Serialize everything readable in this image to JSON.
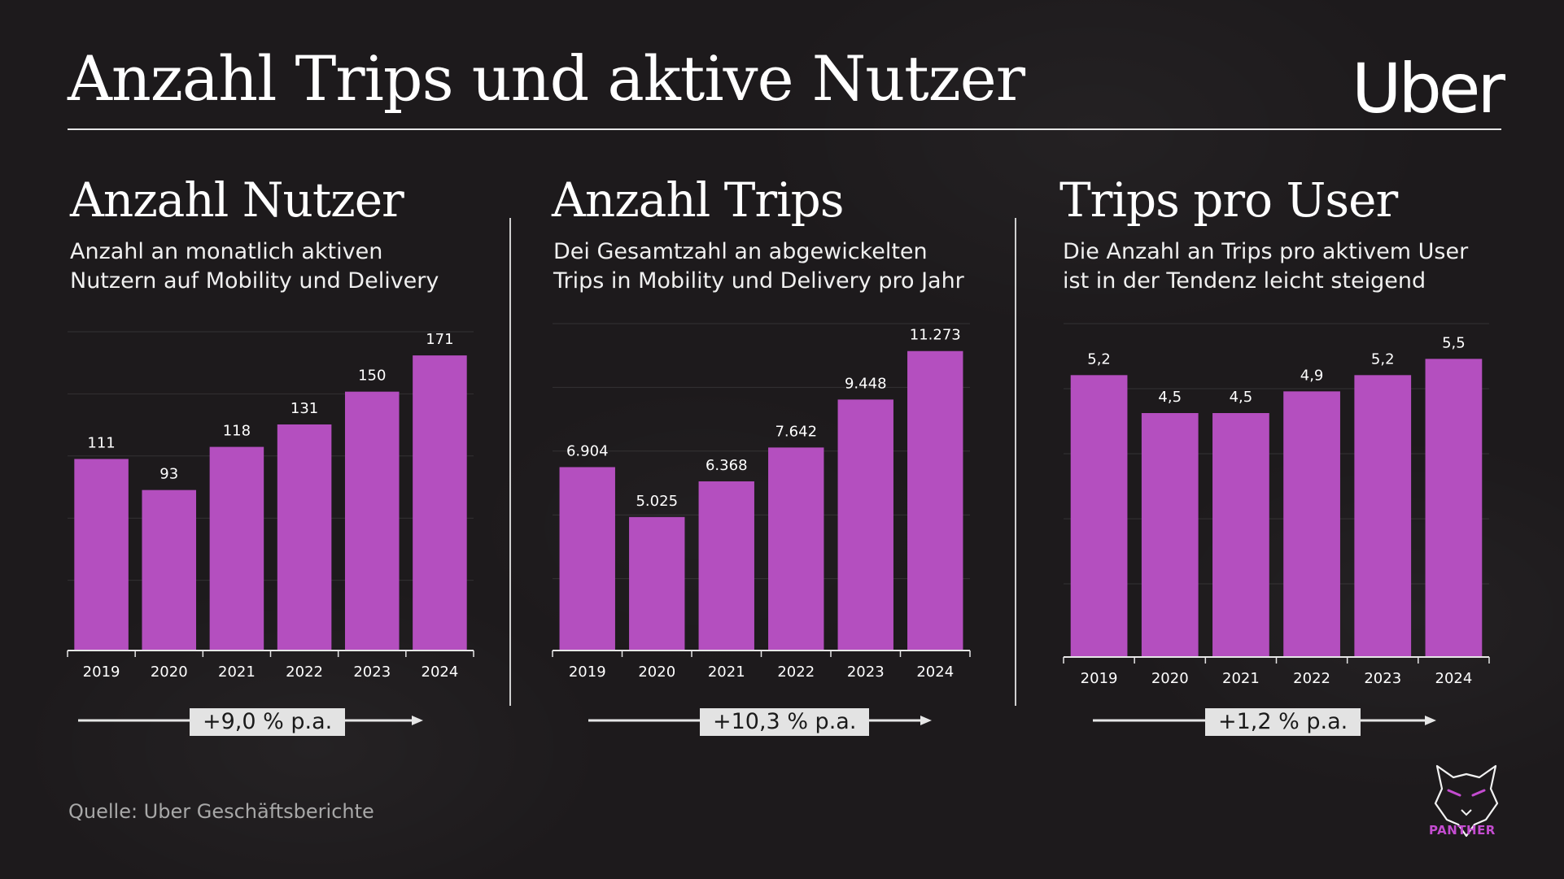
{
  "title": "Anzahl Trips und aktive Nutzer",
  "brand": "Uber",
  "source": "Quelle: Uber Geschäftsberichte",
  "partner_logo": {
    "label": "PANTHER",
    "icon": "panther-icon"
  },
  "colors": {
    "bar": "#b44fbf",
    "background": "#1d1a1c",
    "text": "#ffffff",
    "badge": "#e3e3e3",
    "accent": "#c44cd0"
  },
  "panels": [
    {
      "heading": "Anzahl Nutzer",
      "desc_line1": "Anzahl an monatlich aktiven",
      "desc_line2": "Nutzern auf Mobility und Delivery",
      "cagr": "+9,0 % p.a."
    },
    {
      "heading": "Anzahl Trips",
      "desc_line1": "Dei Gesamtzahl an abgewickelten",
      "desc_line2": "Trips in Mobility und Delivery pro Jahr",
      "cagr": "+10,3 % p.a."
    },
    {
      "heading": "Trips pro User",
      "desc_line1": "Die Anzahl an Trips pro aktivem User",
      "desc_line2": "ist in der Tendenz leicht steigend",
      "cagr": "+1,2 % p.a."
    }
  ],
  "chart_data": [
    {
      "type": "bar",
      "title": "Anzahl Nutzer",
      "categories": [
        "2019",
        "2020",
        "2021",
        "2022",
        "2023",
        "2024"
      ],
      "values": [
        111,
        93,
        118,
        131,
        150,
        171
      ],
      "labels": [
        "111",
        "93",
        "118",
        "131",
        "150",
        "171"
      ],
      "ylim": [
        0,
        180
      ],
      "grid": true
    },
    {
      "type": "bar",
      "title": "Anzahl Trips",
      "categories": [
        "2019",
        "2020",
        "2021",
        "2022",
        "2023",
        "2024"
      ],
      "values": [
        6904,
        5025,
        6368,
        7642,
        9448,
        11273
      ],
      "labels": [
        "6.904",
        "5.025",
        "6.368",
        "7.642",
        "9.448",
        "11.273"
      ],
      "ylim": [
        0,
        12000
      ],
      "grid": true
    },
    {
      "type": "bar",
      "title": "Trips pro User",
      "categories": [
        "2019",
        "2020",
        "2021",
        "2022",
        "2023",
        "2024"
      ],
      "values": [
        5.2,
        4.5,
        4.5,
        4.9,
        5.2,
        5.5
      ],
      "labels": [
        "5,2",
        "4,5",
        "4,5",
        "4,9",
        "5,2",
        "5,5"
      ],
      "ylim": [
        0,
        6
      ],
      "grid": true
    }
  ]
}
